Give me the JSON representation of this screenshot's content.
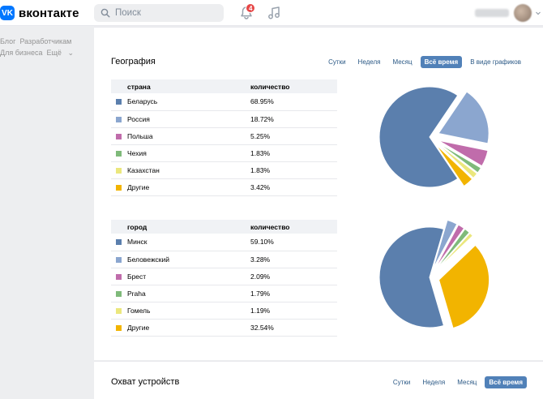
{
  "header": {
    "logo_text": "вконтакте",
    "search_placeholder": "Поиск",
    "notifications_count": "4"
  },
  "sidebar": {
    "links": [
      "Блог",
      "Разработчикам",
      "Для бизнеса",
      "Ещё"
    ]
  },
  "geography": {
    "title": "География",
    "tabs": [
      "Сутки",
      "Неделя",
      "Месяц",
      "Всё время",
      "В виде графиков"
    ],
    "active_tab": "Всё время",
    "countries": {
      "header": [
        "страна",
        "количество"
      ],
      "rows": [
        {
          "name": "Беларусь",
          "value": "68.95%",
          "pct": 68.95,
          "color": "#5b7fad"
        },
        {
          "name": "Россия",
          "value": "18.72%",
          "pct": 18.72,
          "color": "#8ba6cf"
        },
        {
          "name": "Польша",
          "value": "5.25%",
          "pct": 5.25,
          "color": "#c06cab"
        },
        {
          "name": "Чехия",
          "value": "1.83%",
          "pct": 1.83,
          "color": "#7fba7a"
        },
        {
          "name": "Казахстан",
          "value": "1.83%",
          "pct": 1.83,
          "color": "#ebe77d"
        },
        {
          "name": "Другие",
          "value": "3.42%",
          "pct": 3.42,
          "color": "#f2b400"
        }
      ]
    },
    "cities": {
      "header": [
        "город",
        "количество"
      ],
      "rows": [
        {
          "name": "Минск",
          "value": "59.10%",
          "pct": 59.1,
          "color": "#5b7fad"
        },
        {
          "name": "Беловежский",
          "value": "3.28%",
          "pct": 3.28,
          "color": "#8ba6cf"
        },
        {
          "name": "Брест",
          "value": "2.09%",
          "pct": 2.09,
          "color": "#c06cab"
        },
        {
          "name": "Praha",
          "value": "1.79%",
          "pct": 1.79,
          "color": "#7fba7a"
        },
        {
          "name": "Гомель",
          "value": "1.19%",
          "pct": 1.19,
          "color": "#ebe77d"
        },
        {
          "name": "Другие",
          "value": "32.54%",
          "pct": 32.54,
          "color": "#f2b400"
        }
      ]
    }
  },
  "devices": {
    "title": "Охват устройств",
    "tabs": [
      "Сутки",
      "Неделя",
      "Месяц",
      "Всё время"
    ],
    "active_tab": "Всё время"
  }
}
